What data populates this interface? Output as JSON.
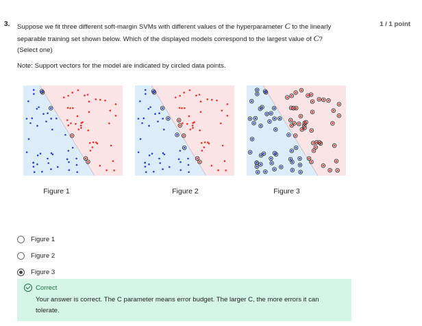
{
  "question": {
    "number": "3.",
    "text_before_c": "Suppose we fit three different soft-margin SVMs with different values of the hyperparameter ",
    "c_symbol": "C",
    "text_after_c": " to the linearly separable training set shown below. Which of the displayed models correspond to the largest value of ",
    "c_symbol_2": "C",
    "text_end": "?",
    "select_hint": "(Select one)",
    "points": "1 / 1 point",
    "note": "Note: Support vectors for the model are indicated by circled data points."
  },
  "figures": [
    {
      "label": "Figure 1"
    },
    {
      "label": "Figure 2"
    },
    {
      "label": "Figure 3"
    }
  ],
  "options": [
    {
      "label": "Figure 1",
      "selected": false
    },
    {
      "label": "Figure 2",
      "selected": false
    },
    {
      "label": "Figure 3",
      "selected": true
    }
  ],
  "feedback": {
    "title": "Correct",
    "message": "Your answer is correct. The C parameter means error budget. The larger C, the more errors it can tolerate."
  },
  "colors": {
    "blue_region": "#dcecf9",
    "red_region": "#fbe4e6",
    "blue_point": "#2a3fd6",
    "red_point": "#e8322b",
    "support_vector": "#333333",
    "feedback_bg": "#d5f5e8"
  }
}
